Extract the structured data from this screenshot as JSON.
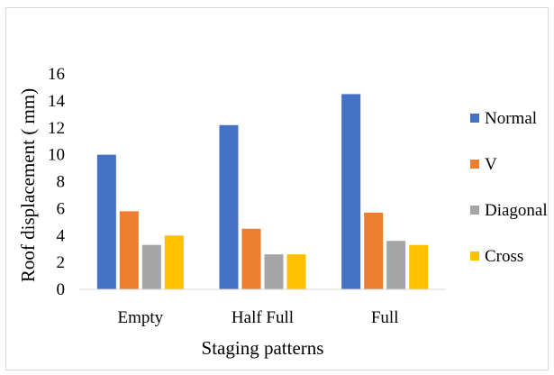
{
  "chart_data": {
    "type": "bar",
    "title": "",
    "xlabel": "Staging patterns",
    "ylabel": "Roof displacement ( mm)",
    "ylim": [
      0,
      16
    ],
    "yticks": [
      0,
      2,
      4,
      6,
      8,
      10,
      12,
      14,
      16
    ],
    "categories": [
      "Empty",
      "Half Full",
      "Full"
    ],
    "series": [
      {
        "name": "Normal",
        "color": "#4472c4",
        "values": [
          10.0,
          12.2,
          14.5
        ]
      },
      {
        "name": "V",
        "color": "#ed7d31",
        "values": [
          5.8,
          4.5,
          5.7
        ]
      },
      {
        "name": "Diagonal",
        "color": "#a5a5a5",
        "values": [
          3.3,
          2.6,
          3.6
        ]
      },
      {
        "name": "Cross",
        "color": "#ffc000",
        "values": [
          4.0,
          2.6,
          3.3
        ]
      }
    ],
    "grid": false,
    "legend_position": "right"
  }
}
